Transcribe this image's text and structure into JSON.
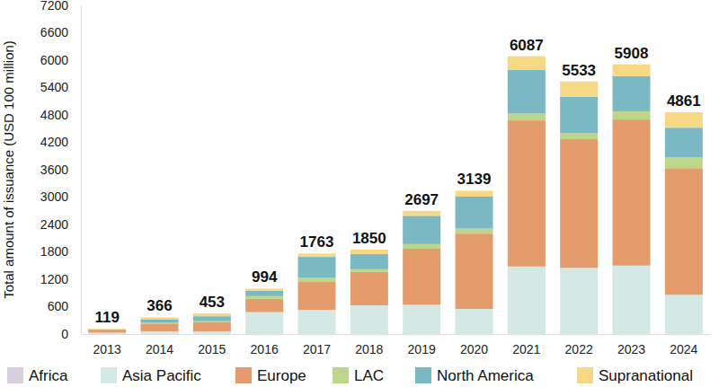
{
  "chart_data": {
    "type": "bar",
    "stacked": true,
    "grid": false,
    "legend": "bottom",
    "y_label": "Total amount of issuance (USD 100 million)",
    "categories": [
      "2013",
      "2014",
      "2015",
      "2016",
      "2017",
      "2018",
      "2019",
      "2020",
      "2021",
      "2022",
      "2023",
      "2024"
    ],
    "series": [
      {
        "name": "Africa",
        "color": "#d9cde0",
        "values": [
          0,
          0,
          0,
          0,
          0,
          0,
          0,
          0,
          0,
          0,
          0,
          0
        ]
      },
      {
        "name": "Asia Pacific",
        "color": "#d4e8e6",
        "values": [
          30,
          60,
          60,
          480,
          530,
          630,
          640,
          550,
          1480,
          1450,
          1500,
          860
        ]
      },
      {
        "name": "Europe",
        "color": "#e49c6c",
        "values": [
          50,
          170,
          200,
          290,
          610,
          730,
          1230,
          1650,
          3200,
          2820,
          3200,
          2760
        ]
      },
      {
        "name": "LAC",
        "color": "#bcd68a",
        "values": [
          5,
          15,
          20,
          60,
          90,
          60,
          100,
          110,
          150,
          130,
          180,
          250
        ]
      },
      {
        "name": "North America",
        "color": "#7ab9c3",
        "values": [
          20,
          70,
          110,
          114,
          460,
          330,
          620,
          700,
          960,
          800,
          770,
          650
        ]
      },
      {
        "name": "Supranational",
        "color": "#f7d884",
        "values": [
          14,
          51,
          63,
          50,
          73,
          100,
          107,
          129,
          297,
          333,
          258,
          341
        ]
      }
    ],
    "totals": [
      119,
      366,
      453,
      994,
      1763,
      1850,
      2697,
      3139,
      6087,
      5533,
      5908,
      4861
    ],
    "ylim": [
      0,
      7200
    ],
    "yticks": [
      0,
      600,
      1200,
      1800,
      2400,
      3000,
      3600,
      4200,
      4800,
      5400,
      6000,
      6600,
      7200
    ]
  }
}
